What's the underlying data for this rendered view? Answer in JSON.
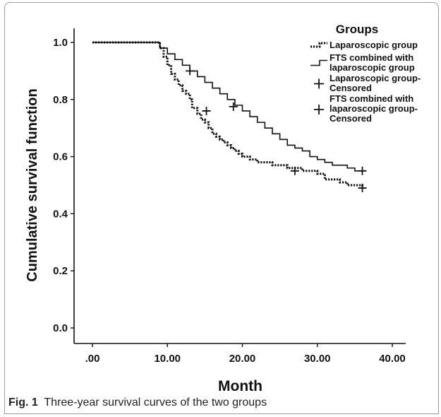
{
  "chart_data": {
    "type": "line",
    "subtype": "kaplan-meier step curves",
    "xlabel": "Month",
    "ylabel": "Cumulative survival function",
    "xlim": [
      0,
      40
    ],
    "ylim": [
      0,
      1
    ],
    "x_ticks": [
      ".00",
      "10.00",
      "20.00",
      "30.00",
      "40.00"
    ],
    "y_ticks": [
      "0.0",
      "0.2",
      "0.4",
      "0.6",
      "0.8",
      "1.0"
    ],
    "grid": false,
    "legend": {
      "title": "Groups",
      "position": "top-right",
      "entries": [
        {
          "label": "Laparoscopic group",
          "style": "dotted"
        },
        {
          "label": "FTS combined with laparoscopic group",
          "style": "solid"
        },
        {
          "label": "Laparoscopic group-Censored",
          "style": "plus"
        },
        {
          "label": "FTS combined with laparoscopic group-Censored",
          "style": "plus"
        }
      ]
    },
    "series": [
      {
        "name": "Laparoscopic group",
        "line_style": "dotted",
        "steps": [
          [
            0,
            1.0
          ],
          [
            9,
            0.98
          ],
          [
            9.5,
            0.95
          ],
          [
            10,
            0.92
          ],
          [
            10.5,
            0.89
          ],
          [
            11,
            0.87
          ],
          [
            11.5,
            0.85
          ],
          [
            12,
            0.83
          ],
          [
            12.5,
            0.82
          ],
          [
            13,
            0.8
          ],
          [
            13.3,
            0.77
          ],
          [
            14,
            0.75
          ],
          [
            14.5,
            0.73
          ],
          [
            15,
            0.72
          ],
          [
            15.5,
            0.7
          ],
          [
            16,
            0.68
          ],
          [
            16.5,
            0.67
          ],
          [
            17,
            0.66
          ],
          [
            17.5,
            0.65
          ],
          [
            18,
            0.64
          ],
          [
            18.5,
            0.63
          ],
          [
            19,
            0.62
          ],
          [
            19.5,
            0.61
          ],
          [
            20,
            0.6
          ],
          [
            21,
            0.59
          ],
          [
            22,
            0.58
          ],
          [
            24,
            0.57
          ],
          [
            26,
            0.56
          ],
          [
            28,
            0.55
          ],
          [
            30,
            0.54
          ],
          [
            31,
            0.52
          ],
          [
            33,
            0.51
          ],
          [
            34,
            0.5
          ],
          [
            36,
            0.49
          ]
        ],
        "censored": [
          [
            15.2,
            0.76
          ],
          [
            27,
            0.55
          ],
          [
            36,
            0.49
          ]
        ]
      },
      {
        "name": "FTS combined with laparoscopic group",
        "line_style": "solid",
        "steps": [
          [
            0,
            1.0
          ],
          [
            9,
            0.98
          ],
          [
            10,
            0.96
          ],
          [
            11,
            0.94
          ],
          [
            12,
            0.92
          ],
          [
            13,
            0.9
          ],
          [
            14,
            0.88
          ],
          [
            15,
            0.86
          ],
          [
            16,
            0.84
          ],
          [
            17,
            0.82
          ],
          [
            18,
            0.8
          ],
          [
            19,
            0.78
          ],
          [
            20,
            0.76
          ],
          [
            21,
            0.74
          ],
          [
            22,
            0.72
          ],
          [
            23,
            0.7
          ],
          [
            24,
            0.68
          ],
          [
            25,
            0.66
          ],
          [
            26,
            0.64
          ],
          [
            27,
            0.63
          ],
          [
            28,
            0.62
          ],
          [
            29,
            0.6
          ],
          [
            30,
            0.59
          ],
          [
            31,
            0.58
          ],
          [
            32,
            0.57
          ],
          [
            34,
            0.56
          ],
          [
            35,
            0.55
          ]
        ],
        "censored": [
          [
            13,
            0.9
          ],
          [
            18.8,
            0.775
          ],
          [
            36,
            0.55
          ]
        ]
      }
    ],
    "end_x": 36
  },
  "caption": {
    "label": "Fig. 1",
    "text": "Three-year survival curves of the two groups"
  }
}
